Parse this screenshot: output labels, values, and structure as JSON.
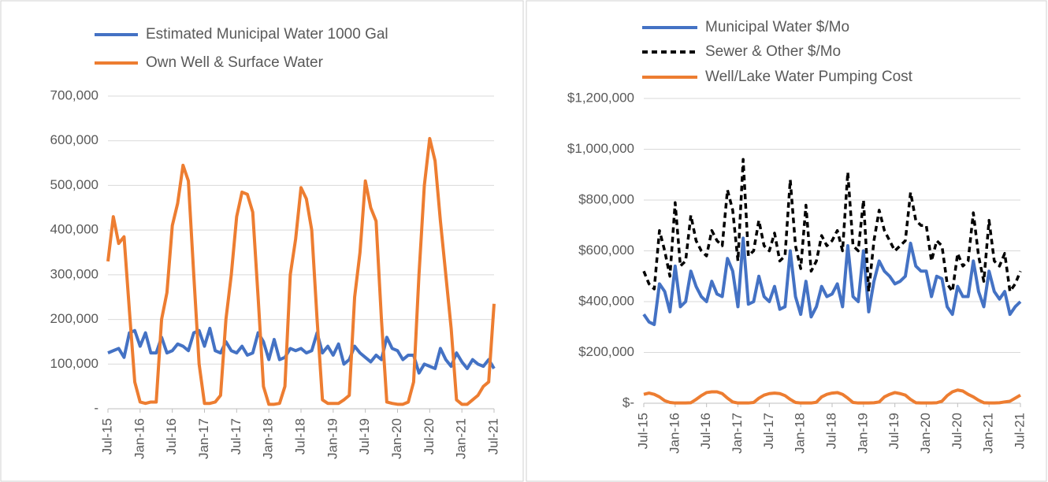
{
  "chart_data": [
    {
      "type": "line",
      "categories": [
        "Jul-15",
        null,
        null,
        null,
        null,
        null,
        "Jan-16",
        null,
        null,
        null,
        null,
        null,
        "Jul-16",
        null,
        null,
        null,
        null,
        null,
        "Jan-17",
        null,
        null,
        null,
        null,
        null,
        "Jul-17",
        null,
        null,
        null,
        null,
        null,
        "Jan-18",
        null,
        null,
        null,
        null,
        null,
        "Jul-18",
        null,
        null,
        null,
        null,
        null,
        "Jan-19",
        null,
        null,
        null,
        null,
        null,
        "Jul-19",
        null,
        null,
        null,
        null,
        null,
        "Jan-20",
        null,
        null,
        null,
        null,
        null,
        "Jul-20",
        null,
        null,
        null,
        null,
        null,
        "Jan-21",
        null,
        null,
        null,
        null,
        null,
        "Jul-21"
      ],
      "series": [
        {
          "name": "Estimated Municipal Water 1000 Gal",
          "color": "#4472c4",
          "style": "solid",
          "values": [
            125000,
            130000,
            135000,
            115000,
            170000,
            175000,
            140000,
            170000,
            125000,
            125000,
            160000,
            125000,
            130000,
            145000,
            140000,
            130000,
            170000,
            175000,
            140000,
            180000,
            130000,
            125000,
            150000,
            130000,
            125000,
            140000,
            120000,
            125000,
            170000,
            150000,
            110000,
            155000,
            110000,
            115000,
            135000,
            130000,
            135000,
            125000,
            130000,
            170000,
            125000,
            140000,
            120000,
            145000,
            100000,
            110000,
            140000,
            125000,
            115000,
            105000,
            120000,
            110000,
            160000,
            135000,
            130000,
            110000,
            120000,
            120000,
            80000,
            100000,
            95000,
            90000,
            135000,
            110000,
            95000,
            125000,
            105000,
            90000,
            110000,
            100000,
            95000,
            110000,
            90000
          ]
        },
        {
          "name": "Own Well & Surface Water",
          "color": "#ed7d31",
          "style": "solid",
          "values": [
            330000,
            430000,
            370000,
            385000,
            220000,
            60000,
            15000,
            12000,
            15000,
            15000,
            200000,
            260000,
            410000,
            460000,
            545000,
            510000,
            300000,
            100000,
            12000,
            12000,
            15000,
            30000,
            200000,
            300000,
            430000,
            485000,
            480000,
            440000,
            250000,
            50000,
            10000,
            10000,
            12000,
            50000,
            300000,
            380000,
            495000,
            470000,
            400000,
            200000,
            20000,
            12000,
            12000,
            12000,
            20000,
            30000,
            250000,
            350000,
            510000,
            450000,
            420000,
            200000,
            15000,
            12000,
            10000,
            10000,
            15000,
            60000,
            300000,
            500000,
            605000,
            555000,
            420000,
            300000,
            180000,
            20000,
            10000,
            10000,
            20000,
            30000,
            50000,
            60000,
            235000
          ]
        }
      ],
      "ylim": [
        0,
        700000
      ],
      "yticks": [
        {
          "value": 0,
          "label": "-"
        },
        {
          "value": 100000,
          "label": "100,000"
        },
        {
          "value": 200000,
          "label": "200,000"
        },
        {
          "value": 300000,
          "label": "300,000"
        },
        {
          "value": 400000,
          "label": "400,000"
        },
        {
          "value": 500000,
          "label": "500,000"
        },
        {
          "value": 600000,
          "label": "600,000"
        },
        {
          "value": 700000,
          "label": "700,000"
        }
      ],
      "grid": true
    },
    {
      "type": "line",
      "categories": [
        "Jul-15",
        null,
        null,
        null,
        null,
        null,
        "Jan-16",
        null,
        null,
        null,
        null,
        null,
        "Jul-16",
        null,
        null,
        null,
        null,
        null,
        "Jan-17",
        null,
        null,
        null,
        null,
        null,
        "Jul-17",
        null,
        null,
        null,
        null,
        null,
        "Jan-18",
        null,
        null,
        null,
        null,
        null,
        "Jul-18",
        null,
        null,
        null,
        null,
        null,
        "Jan-19",
        null,
        null,
        null,
        null,
        null,
        "Jul-19",
        null,
        null,
        null,
        null,
        null,
        "Jan-20",
        null,
        null,
        null,
        null,
        null,
        "Jul-20",
        null,
        null,
        null,
        null,
        null,
        "Jan-21",
        null,
        null,
        null,
        null,
        null,
        "Jul-21"
      ],
      "series": [
        {
          "name": "Municipal Water $/Mo",
          "color": "#4472c4",
          "style": "solid",
          "values": [
            350000,
            320000,
            310000,
            470000,
            440000,
            360000,
            540000,
            380000,
            400000,
            520000,
            460000,
            420000,
            400000,
            480000,
            430000,
            420000,
            570000,
            520000,
            380000,
            650000,
            390000,
            400000,
            500000,
            420000,
            400000,
            460000,
            370000,
            380000,
            600000,
            420000,
            350000,
            480000,
            340000,
            380000,
            460000,
            420000,
            430000,
            470000,
            380000,
            620000,
            420000,
            400000,
            600000,
            360000,
            480000,
            560000,
            520000,
            500000,
            470000,
            480000,
            500000,
            630000,
            540000,
            520000,
            520000,
            420000,
            500000,
            490000,
            380000,
            350000,
            460000,
            420000,
            420000,
            560000,
            440000,
            380000,
            520000,
            440000,
            410000,
            440000,
            350000,
            380000,
            400000
          ]
        },
        {
          "name": "Sewer & Other $/Mo",
          "color": "#000000",
          "style": "dashed",
          "values": [
            520000,
            470000,
            450000,
            680000,
            600000,
            500000,
            790000,
            540000,
            560000,
            740000,
            640000,
            600000,
            580000,
            680000,
            640000,
            620000,
            840000,
            760000,
            560000,
            960000,
            580000,
            600000,
            720000,
            620000,
            600000,
            670000,
            560000,
            580000,
            880000,
            620000,
            530000,
            780000,
            520000,
            560000,
            660000,
            620000,
            640000,
            680000,
            600000,
            910000,
            620000,
            600000,
            800000,
            440000,
            640000,
            760000,
            680000,
            640000,
            600000,
            620000,
            640000,
            830000,
            720000,
            700000,
            700000,
            560000,
            640000,
            620000,
            470000,
            440000,
            590000,
            540000,
            560000,
            750000,
            580000,
            480000,
            720000,
            560000,
            540000,
            590000,
            440000,
            470000,
            520000
          ]
        },
        {
          "name": "Well/Lake Water Pumping Cost",
          "color": "#ed7d31",
          "style": "solid",
          "values": [
            35000,
            40000,
            35000,
            25000,
            10000,
            3000,
            1000,
            1000,
            1000,
            2000,
            15000,
            30000,
            42000,
            45000,
            45000,
            38000,
            20000,
            5000,
            1000,
            1000,
            1000,
            3000,
            20000,
            32000,
            38000,
            40000,
            38000,
            30000,
            15000,
            3000,
            1000,
            1000,
            1000,
            4000,
            25000,
            35000,
            40000,
            42000,
            35000,
            20000,
            3000,
            1000,
            1000,
            1000,
            2000,
            5000,
            25000,
            35000,
            42000,
            38000,
            32000,
            15000,
            2000,
            1000,
            1000,
            1000,
            2000,
            8000,
            30000,
            45000,
            52000,
            48000,
            35000,
            25000,
            12000,
            2000,
            1000,
            1000,
            2000,
            5000,
            8000,
            20000,
            32000
          ]
        }
      ],
      "ylim": [
        0,
        1200000
      ],
      "yticks": [
        {
          "value": 0,
          "label": "$-"
        },
        {
          "value": 200000,
          "label": "$200,000"
        },
        {
          "value": 400000,
          "label": "$400,000"
        },
        {
          "value": 600000,
          "label": "$600,000"
        },
        {
          "value": 800000,
          "label": "$800,000"
        },
        {
          "value": 1000000,
          "label": "$1,000,000"
        },
        {
          "value": 1200000,
          "label": "$1,200,000"
        }
      ],
      "grid": true
    }
  ]
}
